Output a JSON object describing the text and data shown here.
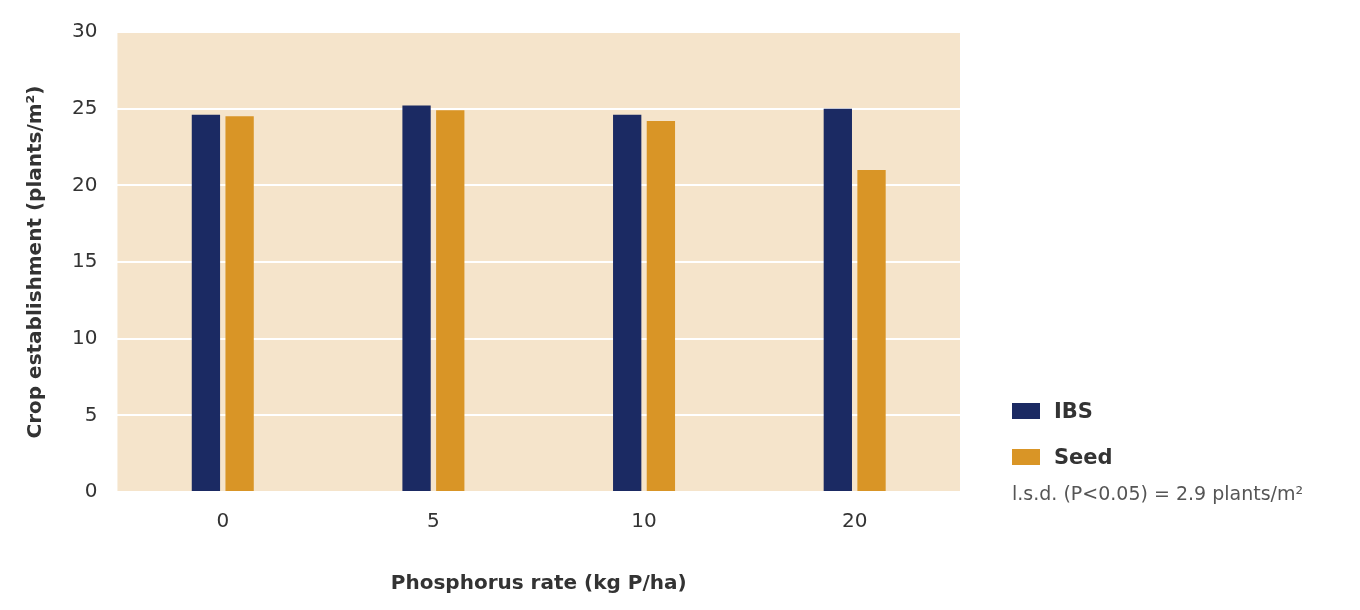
{
  "chart_data": {
    "type": "bar",
    "xlabel": "Phosphorus rate (kg P/ha)",
    "ylabel": "Crop establishment (plants/m²)",
    "categories": [
      "0",
      "5",
      "10",
      "20"
    ],
    "series": [
      {
        "name": "IBS",
        "color": "#1b2a63",
        "values": [
          24.6,
          25.2,
          24.6,
          25.0
        ]
      },
      {
        "name": "Seed",
        "color": "#d99526",
        "values": [
          24.5,
          24.9,
          24.2,
          21.0
        ]
      }
    ],
    "ylim": [
      0,
      30
    ],
    "yticks": [
      0,
      5,
      10,
      15,
      20,
      25,
      30
    ],
    "grid": "y",
    "legend": "right",
    "annotations": [
      "l.s.d. (P<0.05) = 2.9 plants/m²"
    ]
  }
}
